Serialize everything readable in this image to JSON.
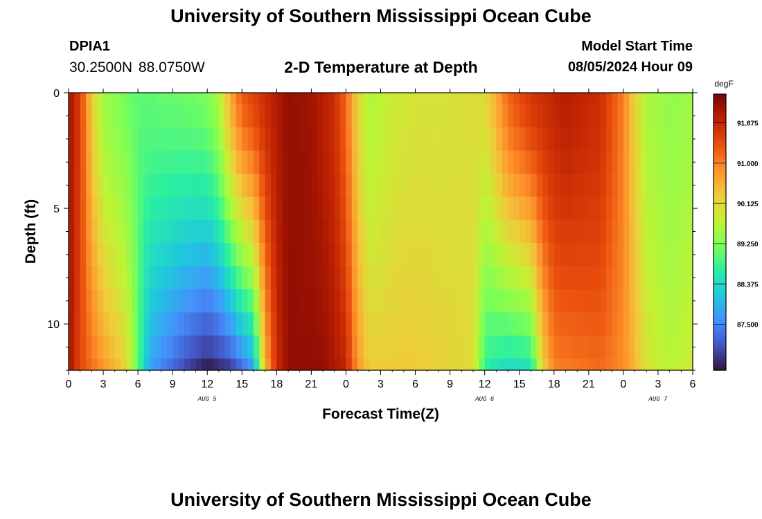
{
  "header": {
    "title": "University of Southern Mississippi Ocean Cube",
    "station": "DPIA1",
    "coords": "30.2500N  88.0750W",
    "subtitle": "2-D Temperature at Depth",
    "model_start_label": "Model Start Time",
    "model_start_value": "08/05/2024 Hour 09"
  },
  "footer": {
    "title": "University of Southern Mississippi Ocean Cube"
  },
  "chart_data": {
    "type": "heatmap",
    "title": "2-D Temperature at Depth",
    "xlabel": "Forecast Time(Z)",
    "ylabel": "Depth (ft)",
    "x_tick_labels": [
      "0",
      "3",
      "6",
      "9",
      "12",
      "15",
      "18",
      "21",
      "0",
      "3",
      "6",
      "9",
      "12",
      "15",
      "18",
      "21",
      "0",
      "3",
      "6"
    ],
    "x_range_hours": [
      0,
      54
    ],
    "y_ticks": [
      0,
      5,
      10
    ],
    "y_range_ft": [
      0,
      12
    ],
    "date_labels": [
      {
        "label": "AUG 5",
        "hour": 12
      },
      {
        "label": "AUG 6",
        "hour": 36
      },
      {
        "label": "AUG 7",
        "hour": 51
      }
    ],
    "colorbar": {
      "unit": "degF",
      "range": [
        86.5,
        92.5
      ],
      "tick_values": [
        87.5,
        88.375,
        89.25,
        90.125,
        91.0,
        91.875
      ],
      "tick_labels": [
        "87.500",
        "88.375",
        "89.250",
        "90.125",
        "91.000",
        "91.875"
      ],
      "colors": [
        "#30123b",
        "#4454c4",
        "#4490fe",
        "#1fc8de",
        "#29efa2",
        "#7dff56",
        "#c1f334",
        "#f1ca3a",
        "#fe922a",
        "#ea4f0d",
        "#be2102",
        "#7a0403"
      ]
    },
    "depth_levels_ft": [
      0,
      1,
      2,
      3,
      4,
      5,
      6,
      7,
      8,
      9,
      10,
      11,
      12
    ],
    "surface_profile_degF": [
      {
        "hour": 0,
        "value": 92.2
      },
      {
        "hour": 1,
        "value": 91.6
      },
      {
        "hour": 2,
        "value": 90.3
      },
      {
        "hour": 3,
        "value": 89.5
      },
      {
        "hour": 6,
        "value": 89.0
      },
      {
        "hour": 10,
        "value": 89.1
      },
      {
        "hour": 12,
        "value": 89.2
      },
      {
        "hour": 13,
        "value": 89.6
      },
      {
        "hour": 14,
        "value": 90.6
      },
      {
        "hour": 15,
        "value": 91.3
      },
      {
        "hour": 17,
        "value": 91.8
      },
      {
        "hour": 19,
        "value": 92.3
      },
      {
        "hour": 21,
        "value": 92.2
      },
      {
        "hour": 23,
        "value": 91.8
      },
      {
        "hour": 24,
        "value": 91.2
      },
      {
        "hour": 25,
        "value": 90.2
      },
      {
        "hour": 26,
        "value": 89.6
      },
      {
        "hour": 28,
        "value": 89.9
      },
      {
        "hour": 30,
        "value": 90.0
      },
      {
        "hour": 33,
        "value": 90.0
      },
      {
        "hour": 36,
        "value": 90.1
      },
      {
        "hour": 37,
        "value": 90.6
      },
      {
        "hour": 38,
        "value": 91.2
      },
      {
        "hour": 40,
        "value": 91.7
      },
      {
        "hour": 43,
        "value": 92.0
      },
      {
        "hour": 46,
        "value": 91.8
      },
      {
        "hour": 48,
        "value": 91.0
      },
      {
        "hour": 49,
        "value": 90.2
      },
      {
        "hour": 50,
        "value": 89.6
      },
      {
        "hour": 52,
        "value": 89.4
      },
      {
        "hour": 54,
        "value": 89.5
      }
    ],
    "bottom_profile_degF": [
      {
        "hour": 0,
        "value": 92.2
      },
      {
        "hour": 1,
        "value": 91.5
      },
      {
        "hour": 3,
        "value": 90.8
      },
      {
        "hour": 5,
        "value": 90.2
      },
      {
        "hour": 7,
        "value": 87.8
      },
      {
        "hour": 10,
        "value": 87.0
      },
      {
        "hour": 12,
        "value": 86.6
      },
      {
        "hour": 14,
        "value": 86.9
      },
      {
        "hour": 16,
        "value": 87.8
      },
      {
        "hour": 17,
        "value": 90.5
      },
      {
        "hour": 18,
        "value": 91.8
      },
      {
        "hour": 19,
        "value": 92.3
      },
      {
        "hour": 22,
        "value": 92.3
      },
      {
        "hour": 24,
        "value": 91.9
      },
      {
        "hour": 25,
        "value": 90.8
      },
      {
        "hour": 26,
        "value": 90.3
      },
      {
        "hour": 30,
        "value": 90.3
      },
      {
        "hour": 35,
        "value": 90.1
      },
      {
        "hour": 35.5,
        "value": 89.5
      },
      {
        "hour": 36,
        "value": 88.7
      },
      {
        "hour": 38,
        "value": 88.4
      },
      {
        "hour": 40,
        "value": 88.5
      },
      {
        "hour": 41,
        "value": 90.2
      },
      {
        "hour": 42,
        "value": 91.0
      },
      {
        "hour": 46,
        "value": 91.2
      },
      {
        "hour": 48,
        "value": 90.9
      },
      {
        "hour": 49,
        "value": 90.5
      },
      {
        "hour": 50,
        "value": 90.0
      },
      {
        "hour": 52,
        "value": 89.7
      },
      {
        "hour": 54,
        "value": 89.9
      }
    ]
  }
}
